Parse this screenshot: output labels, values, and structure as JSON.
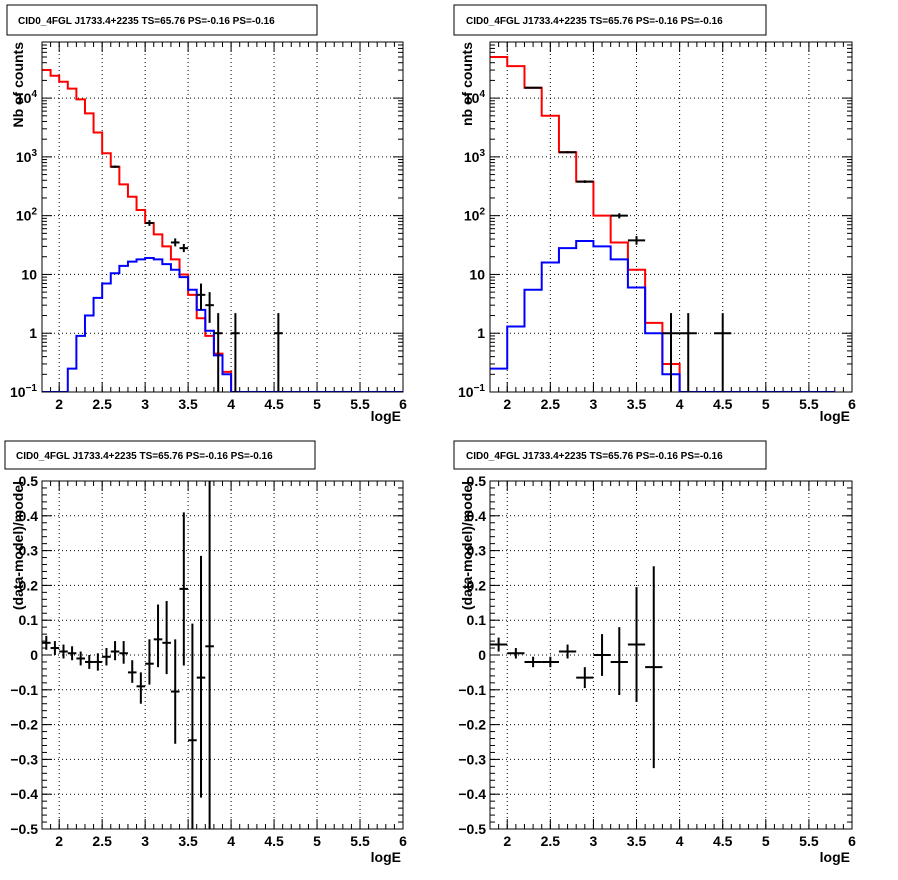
{
  "chart_data": [
    {
      "type": "line",
      "title": "CID0_4FGL J1733.4+2235 TS=65.76 PS=-0.16 PS=-0.16",
      "xlabel": "logE",
      "ylabel": "Nb of counts",
      "yscale": "log",
      "xlim": [
        1.8,
        6.0
      ],
      "ylim": [
        0.1,
        90000
      ],
      "grid": true,
      "xticks": [
        "2",
        "2.5",
        "3",
        "3.5",
        "4",
        "4.5",
        "5",
        "5.5",
        "6"
      ],
      "yticks": [
        {
          "v": 0.1,
          "base": "10",
          "exp": "−1"
        },
        {
          "v": 1,
          "label": "1"
        },
        {
          "v": 10,
          "label": "10"
        },
        {
          "v": 100,
          "base": "10",
          "exp": "2"
        },
        {
          "v": 1000,
          "base": "10",
          "exp": "3"
        },
        {
          "v": 10000,
          "base": "10",
          "exp": "4"
        }
      ],
      "bin_edges": [
        1.8,
        1.9,
        2.0,
        2.1,
        2.2,
        2.3,
        2.4,
        2.5,
        2.6,
        2.7,
        2.8,
        2.9,
        3.0,
        3.1,
        3.2,
        3.3,
        3.4,
        3.5,
        3.6,
        3.7,
        3.8,
        3.9,
        4.0,
        4.1,
        4.2,
        4.3,
        4.4,
        4.5,
        4.6,
        4.7,
        4.8,
        4.9,
        5.0,
        5.1,
        5.2,
        5.3,
        5.4,
        5.5,
        5.6,
        5.7,
        5.8,
        5.9,
        6.0
      ],
      "series": [
        {
          "color": "#ff0000",
          "values": [
            30000,
            24000,
            19000,
            14500,
            9500,
            5500,
            2600,
            1150,
            680,
            340,
            210,
            125,
            75,
            48,
            30,
            18,
            10,
            4.5,
            1.8,
            0.9,
            0.45,
            0.22,
            0.1,
            0.1,
            0.1,
            0.1,
            0.1,
            0.1,
            0.1,
            0.1,
            0.1,
            0.1,
            0.1,
            0.1,
            0.1,
            0.1,
            0.1,
            0.1,
            0.1,
            0.1,
            0.1,
            0.1
          ]
        },
        {
          "color": "#0000ff",
          "values": [
            0.1,
            0.1,
            0.1,
            0.25,
            0.9,
            2.0,
            4.0,
            7.0,
            10.5,
            14,
            16.5,
            18,
            19,
            18,
            15,
            12,
            9,
            5.5,
            2.5,
            1.1,
            0.42,
            0.2,
            0.1,
            0.1,
            0.1,
            0.1,
            0.1,
            0.1,
            0.1,
            0.1,
            0.1,
            0.1,
            0.1,
            0.1,
            0.1,
            0.1,
            0.1,
            0.1,
            0.1,
            0.1,
            0.1,
            0.1
          ]
        }
      ],
      "points": [
        {
          "x": 2.65,
          "y": 680,
          "xerr": 0.05,
          "ylo": 650,
          "yhi": 710
        },
        {
          "x": 3.05,
          "y": 75,
          "xerr": 0.05,
          "ylo": 67,
          "yhi": 84
        },
        {
          "x": 3.35,
          "y": 35,
          "xerr": 0.05,
          "ylo": 30,
          "yhi": 41
        },
        {
          "x": 3.45,
          "y": 28,
          "xerr": 0.05,
          "ylo": 24,
          "yhi": 33
        },
        {
          "x": 3.65,
          "y": 4.5,
          "xerr": 0.05,
          "ylo": 2.5,
          "yhi": 7
        },
        {
          "x": 3.75,
          "y": 3.0,
          "xerr": 0.05,
          "ylo": 1.5,
          "yhi": 5
        },
        {
          "x": 3.85,
          "y": 1.0,
          "xerr": 0.05,
          "ylo": 0.1,
          "yhi": 2.2
        },
        {
          "x": 4.05,
          "y": 1.0,
          "xerr": 0.05,
          "ylo": 0.1,
          "yhi": 2.2
        },
        {
          "x": 4.55,
          "y": 1.0,
          "xerr": 0.05,
          "ylo": 0.1,
          "yhi": 2.2
        }
      ]
    },
    {
      "type": "line",
      "title": "CID0_4FGL J1733.4+2235 TS=65.76 PS=-0.16 PS=-0.16",
      "xlabel": "logE",
      "ylabel": "nb of counts",
      "yscale": "log",
      "xlim": [
        1.8,
        6.0
      ],
      "ylim": [
        0.1,
        90000
      ],
      "grid": true,
      "xticks": [
        "2",
        "2.5",
        "3",
        "3.5",
        "4",
        "4.5",
        "5",
        "5.5",
        "6"
      ],
      "yticks": [
        {
          "v": 0.1,
          "base": "10",
          "exp": "−1"
        },
        {
          "v": 1,
          "label": "1"
        },
        {
          "v": 10,
          "label": "10"
        },
        {
          "v": 100,
          "base": "10",
          "exp": "2"
        },
        {
          "v": 1000,
          "base": "10",
          "exp": "3"
        },
        {
          "v": 10000,
          "base": "10",
          "exp": "4"
        }
      ],
      "bin_edges": [
        1.8,
        2.0,
        2.2,
        2.4,
        2.6,
        2.8,
        3.0,
        3.2,
        3.4,
        3.6,
        3.8,
        4.0,
        4.2,
        4.4,
        4.6,
        4.8,
        5.0,
        5.2,
        5.4,
        5.6,
        5.8,
        6.0
      ],
      "series": [
        {
          "color": "#ff0000",
          "values": [
            50000,
            35000,
            15000,
            5000,
            1200,
            380,
            100,
            35,
            12,
            1.5,
            0.3,
            0.1,
            0.1,
            0.1,
            0.1,
            0.1,
            0.1,
            0.1,
            0.1,
            0.1
          ]
        },
        {
          "color": "#0000ff",
          "values": [
            0.25,
            1.3,
            5.5,
            16,
            28,
            37,
            30,
            18,
            6.0,
            1.0,
            0.2,
            0.1,
            0.1,
            0.1,
            0.1,
            0.1,
            0.1,
            0.1,
            0.1,
            0.1
          ]
        }
      ],
      "points": [
        {
          "x": 2.3,
          "y": 15000,
          "xerr": 0.1,
          "ylo": 14600,
          "yhi": 15400
        },
        {
          "x": 2.7,
          "y": 1200,
          "xerr": 0.1,
          "ylo": 1150,
          "yhi": 1250
        },
        {
          "x": 2.9,
          "y": 380,
          "xerr": 0.1,
          "ylo": 360,
          "yhi": 400
        },
        {
          "x": 3.3,
          "y": 100,
          "xerr": 0.1,
          "ylo": 90,
          "yhi": 110
        },
        {
          "x": 3.5,
          "y": 38,
          "xerr": 0.1,
          "ylo": 32,
          "yhi": 45
        },
        {
          "x": 3.9,
          "y": 1.0,
          "xerr": 0.1,
          "ylo": 0.1,
          "yhi": 2.2
        },
        {
          "x": 4.1,
          "y": 1.0,
          "xerr": 0.1,
          "ylo": 0.1,
          "yhi": 2.2
        },
        {
          "x": 4.5,
          "y": 1.0,
          "xerr": 0.1,
          "ylo": 0.1,
          "yhi": 2.2
        }
      ]
    },
    {
      "type": "scatter",
      "title": "CID0_4FGL J1733.4+2235 TS=65.76 PS=-0.16 PS=-0.16",
      "xlabel": "logE",
      "ylabel": "(data-model)/model",
      "xlim": [
        1.8,
        6.0
      ],
      "ylim": [
        -0.5,
        0.5
      ],
      "grid": true,
      "xticks": [
        "2",
        "2.5",
        "3",
        "3.5",
        "4",
        "4.5",
        "5",
        "5.5",
        "6"
      ],
      "yticks": [
        "−0.5",
        "−0.4",
        "−0.3",
        "−0.2",
        "−0.1",
        "0",
        "0.1",
        "0.2",
        "0.3",
        "0.4",
        "0.5"
      ],
      "points": [
        {
          "x": 1.85,
          "y": 0.035,
          "xerr": 0.05,
          "ylo": 0.015,
          "yhi": 0.055
        },
        {
          "x": 1.95,
          "y": 0.02,
          "xerr": 0.05,
          "ylo": 0.0,
          "yhi": 0.04
        },
        {
          "x": 2.05,
          "y": 0.01,
          "xerr": 0.05,
          "ylo": -0.01,
          "yhi": 0.03
        },
        {
          "x": 2.15,
          "y": 0.005,
          "xerr": 0.05,
          "ylo": -0.015,
          "yhi": 0.025
        },
        {
          "x": 2.25,
          "y": -0.01,
          "xerr": 0.05,
          "ylo": -0.03,
          "yhi": 0.01
        },
        {
          "x": 2.35,
          "y": -0.02,
          "xerr": 0.05,
          "ylo": -0.04,
          "yhi": 0.0
        },
        {
          "x": 2.45,
          "y": -0.02,
          "xerr": 0.05,
          "ylo": -0.045,
          "yhi": 0.005
        },
        {
          "x": 2.55,
          "y": -0.005,
          "xerr": 0.05,
          "ylo": -0.03,
          "yhi": 0.02
        },
        {
          "x": 2.65,
          "y": 0.01,
          "xerr": 0.05,
          "ylo": -0.015,
          "yhi": 0.04
        },
        {
          "x": 2.75,
          "y": 0.005,
          "xerr": 0.05,
          "ylo": -0.025,
          "yhi": 0.04
        },
        {
          "x": 2.85,
          "y": -0.05,
          "xerr": 0.05,
          "ylo": -0.08,
          "yhi": -0.015
        },
        {
          "x": 2.95,
          "y": -0.09,
          "xerr": 0.05,
          "ylo": -0.14,
          "yhi": -0.05
        },
        {
          "x": 3.05,
          "y": -0.025,
          "xerr": 0.05,
          "ylo": -0.085,
          "yhi": 0.045
        },
        {
          "x": 3.15,
          "y": 0.045,
          "xerr": 0.05,
          "ylo": -0.035,
          "yhi": 0.145
        },
        {
          "x": 3.25,
          "y": 0.035,
          "xerr": 0.05,
          "ylo": -0.055,
          "yhi": 0.155
        },
        {
          "x": 3.35,
          "y": -0.105,
          "xerr": 0.05,
          "ylo": -0.255,
          "yhi": 0.045
        },
        {
          "x": 3.45,
          "y": 0.19,
          "xerr": 0.05,
          "ylo": -0.03,
          "yhi": 0.41
        },
        {
          "x": 3.55,
          "y": -0.245,
          "xerr": 0.05,
          "ylo": -0.5,
          "yhi": 0.09
        },
        {
          "x": 3.65,
          "y": -0.065,
          "xerr": 0.05,
          "ylo": -0.41,
          "yhi": 0.285
        },
        {
          "x": 3.75,
          "y": 0.025,
          "xerr": 0.05,
          "ylo": -0.5,
          "yhi": 0.5
        }
      ]
    },
    {
      "type": "scatter",
      "title": "CID0_4FGL J1733.4+2235 TS=65.76 PS=-0.16 PS=-0.16",
      "xlabel": "logE",
      "ylabel": "(data-model)/model",
      "xlim": [
        1.8,
        6.0
      ],
      "ylim": [
        -0.5,
        0.5
      ],
      "grid": true,
      "xticks": [
        "2",
        "2.5",
        "3",
        "3.5",
        "4",
        "4.5",
        "5",
        "5.5",
        "6"
      ],
      "yticks": [
        "−0.5",
        "−0.4",
        "−0.3",
        "−0.2",
        "−0.1",
        "0",
        "0.1",
        "0.2",
        "0.3",
        "0.4",
        "0.5"
      ],
      "points": [
        {
          "x": 1.9,
          "y": 0.03,
          "xerr": 0.1,
          "ylo": 0.01,
          "yhi": 0.05
        },
        {
          "x": 2.1,
          "y": 0.005,
          "xerr": 0.1,
          "ylo": -0.01,
          "yhi": 0.02
        },
        {
          "x": 2.3,
          "y": -0.02,
          "xerr": 0.1,
          "ylo": -0.035,
          "yhi": -0.005
        },
        {
          "x": 2.5,
          "y": -0.02,
          "xerr": 0.1,
          "ylo": -0.035,
          "yhi": -0.005
        },
        {
          "x": 2.7,
          "y": 0.01,
          "xerr": 0.1,
          "ylo": -0.01,
          "yhi": 0.03
        },
        {
          "x": 2.9,
          "y": -0.065,
          "xerr": 0.1,
          "ylo": -0.095,
          "yhi": -0.035
        },
        {
          "x": 3.1,
          "y": 0.0,
          "xerr": 0.1,
          "ylo": -0.06,
          "yhi": 0.06
        },
        {
          "x": 3.3,
          "y": -0.02,
          "xerr": 0.1,
          "ylo": -0.115,
          "yhi": 0.08
        },
        {
          "x": 3.5,
          "y": 0.03,
          "xerr": 0.1,
          "ylo": -0.135,
          "yhi": 0.195
        },
        {
          "x": 3.7,
          "y": -0.035,
          "xerr": 0.1,
          "ylo": -0.325,
          "yhi": 0.255
        }
      ]
    }
  ]
}
